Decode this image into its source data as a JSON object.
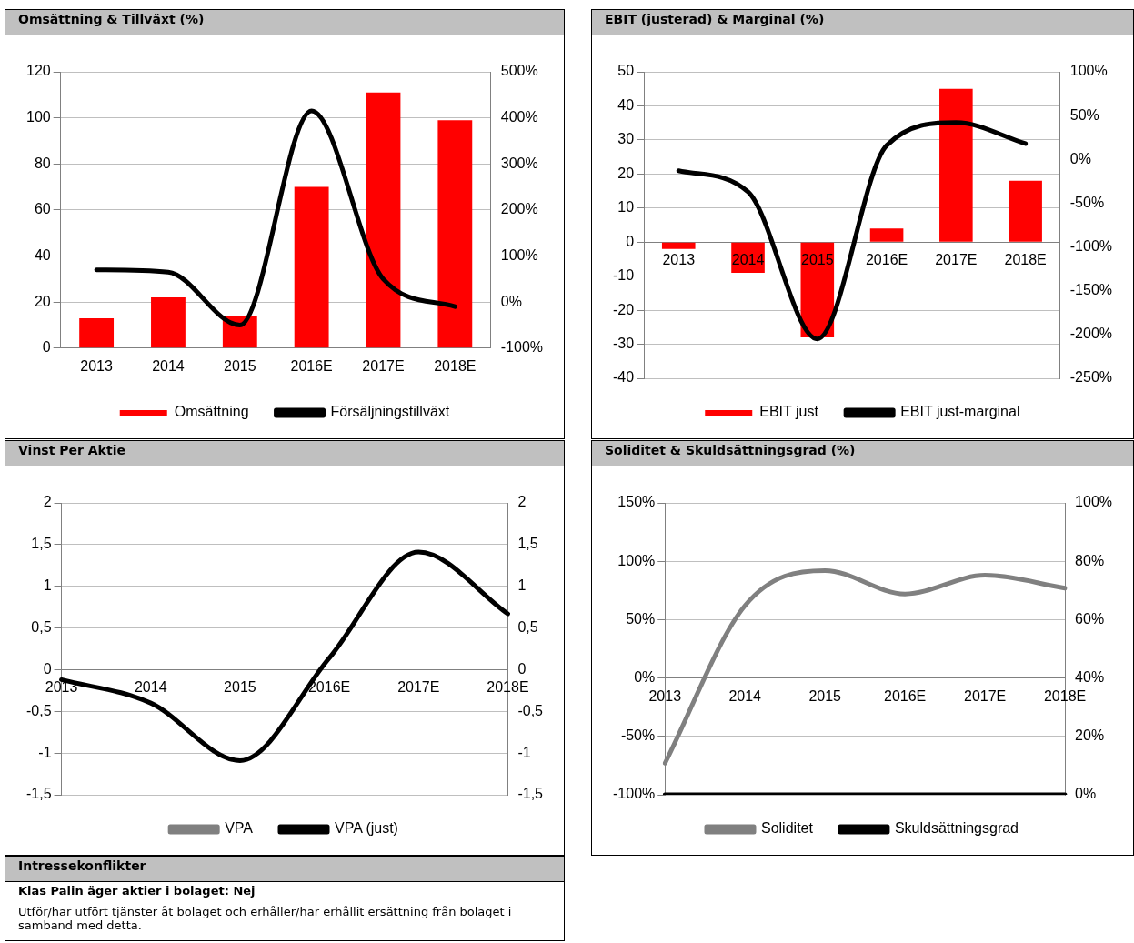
{
  "chart_data": [
    {
      "type": "bar",
      "title": "Omsättning & Tillväxt (%)",
      "categories": [
        "2013",
        "2014",
        "2015",
        "2016E",
        "2017E",
        "2018E"
      ],
      "series": [
        {
          "name": "Omsättning",
          "type": "bar",
          "color": "#ff0000",
          "values": [
            13,
            22,
            14,
            70,
            111,
            99
          ]
        },
        {
          "name": "Försäljningstillväxt",
          "type": "line",
          "axis": "y2",
          "color": "#000000",
          "values": [
            70,
            65,
            -50,
            415,
            50,
            -10
          ]
        }
      ],
      "ylim": [
        0,
        120
      ],
      "yticks": [
        0,
        20,
        40,
        60,
        80,
        100,
        120
      ],
      "y2lim": [
        -100,
        500
      ],
      "y2ticks": [
        {
          "value": -100,
          "label": "-100%"
        },
        {
          "value": 0,
          "label": "0%"
        },
        {
          "value": 100,
          "label": "100%"
        },
        {
          "value": 200,
          "label": "200%"
        },
        {
          "value": 300,
          "label": "300%"
        },
        {
          "value": 400,
          "label": "400%"
        },
        {
          "value": 500,
          "label": "500%"
        }
      ],
      "grid": "y",
      "legend": "bottom"
    },
    {
      "type": "bar",
      "title": "EBIT (justerad) & Marginal (%)",
      "categories": [
        "2013",
        "2014",
        "2015",
        "2016E",
        "2017E",
        "2018E"
      ],
      "series": [
        {
          "name": "EBIT just",
          "type": "bar",
          "color": "#ff0000",
          "values": [
            -2,
            -9,
            -28,
            4,
            45,
            18
          ]
        },
        {
          "name": "EBIT just-marginal",
          "type": "line",
          "axis": "y2",
          "color": "#000000",
          "values": [
            -13,
            -37,
            -205,
            16,
            42,
            18
          ]
        }
      ],
      "ylim": [
        -40,
        50
      ],
      "yticks": [
        -40,
        -30,
        -20,
        -10,
        0,
        10,
        20,
        30,
        40,
        50
      ],
      "y2lim": [
        -250,
        100
      ],
      "y2ticks": [
        {
          "value": -250,
          "label": "-250%"
        },
        {
          "value": -200,
          "label": "-200%"
        },
        {
          "value": -150,
          "label": "-150%"
        },
        {
          "value": -100,
          "label": "-100%"
        },
        {
          "value": -50,
          "label": "-50%"
        },
        {
          "value": 0,
          "label": "0%"
        },
        {
          "value": 50,
          "label": "50%"
        },
        {
          "value": 100,
          "label": "100%"
        }
      ],
      "grid": "y",
      "legend": "bottom"
    },
    {
      "type": "line",
      "title": "Vinst Per Aktie",
      "categories": [
        "2013",
        "2014",
        "2015",
        "2016E",
        "2017E",
        "2018E"
      ],
      "series": [
        {
          "name": "VPA",
          "color": "#808080",
          "values": [
            null,
            null,
            null,
            null,
            null,
            null
          ]
        },
        {
          "name": "VPA (just)",
          "color": "#000000",
          "values": [
            -0.12,
            -0.4,
            -1.09,
            0.14,
            1.41,
            0.67
          ]
        }
      ],
      "ylim": [
        -1.5,
        2
      ],
      "yticks": [
        {
          "value": -1.5,
          "label": "-1,5"
        },
        -1,
        {
          "value": -0.5,
          "label": "-0,5"
        },
        0,
        {
          "value": 0.5,
          "label": "0,5"
        },
        1,
        {
          "value": 1.5,
          "label": "1,5"
        },
        2
      ],
      "y2lim": [
        -1.5,
        2
      ],
      "y2ticks": [
        {
          "value": -1.5,
          "label": "-1,5"
        },
        -1,
        {
          "value": -0.5,
          "label": "-0,5"
        },
        0,
        {
          "value": 0.5,
          "label": "0,5"
        },
        1,
        {
          "value": 1.5,
          "label": "1,5"
        },
        2
      ],
      "grid": "y",
      "legend": "bottom"
    },
    {
      "type": "line",
      "title": "Soliditet & Skuldsättningsgrad (%)",
      "categories": [
        "2013",
        "2014",
        "2015",
        "2016E",
        "2017E",
        "2018E"
      ],
      "series": [
        {
          "name": "Soliditet",
          "color": "#808080",
          "values": [
            -73,
            62,
            92,
            72,
            88,
            77
          ]
        },
        {
          "name": "Skuldsättningsgrad",
          "axis": "y2",
          "color": "#000000",
          "values": [
            0,
            0,
            0,
            0,
            0,
            0
          ]
        }
      ],
      "ylim": [
        -100,
        150
      ],
      "yticks": [
        {
          "value": -100,
          "label": "-100%"
        },
        {
          "value": -50,
          "label": "-50%"
        },
        {
          "value": 0,
          "label": "0%"
        },
        {
          "value": 50,
          "label": "50%"
        },
        {
          "value": 100,
          "label": "100%"
        },
        {
          "value": 150,
          "label": "150%"
        }
      ],
      "y2lim": [
        0,
        100
      ],
      "y2ticks": [
        {
          "value": 0,
          "label": "0%"
        },
        {
          "value": 20,
          "label": "20%"
        },
        {
          "value": 40,
          "label": "40%"
        },
        {
          "value": 60,
          "label": "60%"
        },
        {
          "value": 80,
          "label": "80%"
        },
        {
          "value": 100,
          "label": "100%"
        }
      ],
      "grid": "y",
      "legend": "bottom"
    },
    {
      "type": "other",
      "title": "Intressekonflikter",
      "annotations": [
        "Klas Palin äger aktier i bolaget: Nej",
        "Utför/har utfört tjänster åt bolaget och erhåller/har erhållit ersättning från bolaget i samband med detta."
      ]
    }
  ]
}
